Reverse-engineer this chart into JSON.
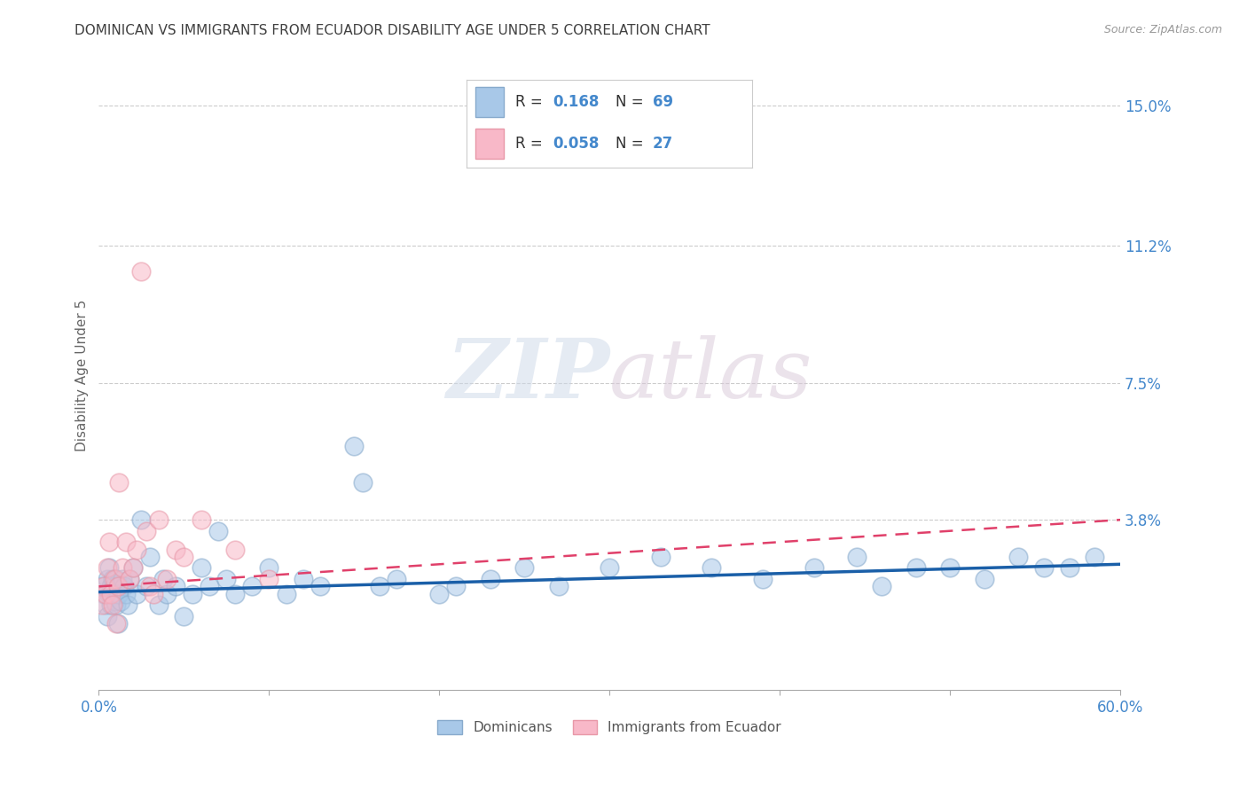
{
  "title": "DOMINICAN VS IMMIGRANTS FROM ECUADOR DISABILITY AGE UNDER 5 CORRELATION CHART",
  "source": "Source: ZipAtlas.com",
  "ylabel": "Disability Age Under 5",
  "xlim": [
    0.0,
    0.6
  ],
  "ylim": [
    -0.008,
    0.162
  ],
  "xticks": [
    0.0,
    0.1,
    0.2,
    0.3,
    0.4,
    0.5,
    0.6
  ],
  "xticklabels": [
    "0.0%",
    "",
    "",
    "",
    "",
    "",
    "60.0%"
  ],
  "ytick_positions": [
    0.038,
    0.075,
    0.112,
    0.15
  ],
  "ytick_labels": [
    "3.8%",
    "7.5%",
    "11.2%",
    "15.0%"
  ],
  "dominican_color": "#a8c8e8",
  "ecuador_color": "#f8b8c8",
  "dominican_edge_color": "#88aacc",
  "ecuador_edge_color": "#e898a8",
  "dominican_line_color": "#1a5fa8",
  "ecuador_line_color": "#e0406a",
  "legend_r_dominican": "0.168",
  "legend_n_dominican": "69",
  "legend_r_ecuador": "0.058",
  "legend_n_ecuador": "27",
  "legend_label_dominican": "Dominicans",
  "legend_label_ecuador": "Immigrants from Ecuador",
  "watermark_zip": "ZIP",
  "watermark_atlas": "atlas",
  "background_color": "#ffffff",
  "grid_color": "#cccccc",
  "title_color": "#404040",
  "axis_label_color": "#4488cc",
  "dominican_x": [
    0.002,
    0.003,
    0.004,
    0.005,
    0.005,
    0.006,
    0.006,
    0.007,
    0.007,
    0.008,
    0.008,
    0.009,
    0.009,
    0.01,
    0.01,
    0.011,
    0.011,
    0.012,
    0.012,
    0.013,
    0.014,
    0.015,
    0.016,
    0.017,
    0.018,
    0.02,
    0.022,
    0.025,
    0.028,
    0.03,
    0.035,
    0.038,
    0.04,
    0.045,
    0.05,
    0.055,
    0.06,
    0.065,
    0.07,
    0.075,
    0.08,
    0.09,
    0.1,
    0.11,
    0.12,
    0.13,
    0.15,
    0.155,
    0.165,
    0.175,
    0.2,
    0.21,
    0.23,
    0.25,
    0.27,
    0.3,
    0.33,
    0.36,
    0.39,
    0.42,
    0.445,
    0.46,
    0.48,
    0.5,
    0.52,
    0.54,
    0.555,
    0.57,
    0.585
  ],
  "dominican_y": [
    0.02,
    0.018,
    0.015,
    0.022,
    0.012,
    0.018,
    0.025,
    0.015,
    0.02,
    0.022,
    0.018,
    0.016,
    0.02,
    0.015,
    0.022,
    0.018,
    0.01,
    0.02,
    0.018,
    0.016,
    0.022,
    0.02,
    0.018,
    0.015,
    0.022,
    0.025,
    0.018,
    0.038,
    0.02,
    0.028,
    0.015,
    0.022,
    0.018,
    0.02,
    0.012,
    0.018,
    0.025,
    0.02,
    0.035,
    0.022,
    0.018,
    0.02,
    0.025,
    0.018,
    0.022,
    0.02,
    0.058,
    0.048,
    0.02,
    0.022,
    0.018,
    0.02,
    0.022,
    0.025,
    0.02,
    0.025,
    0.028,
    0.025,
    0.022,
    0.025,
    0.028,
    0.02,
    0.025,
    0.025,
    0.022,
    0.028,
    0.025,
    0.025,
    0.028
  ],
  "ecuador_x": [
    0.002,
    0.003,
    0.004,
    0.005,
    0.006,
    0.007,
    0.008,
    0.009,
    0.01,
    0.011,
    0.012,
    0.014,
    0.016,
    0.018,
    0.02,
    0.022,
    0.025,
    0.028,
    0.03,
    0.032,
    0.035,
    0.04,
    0.045,
    0.05,
    0.06,
    0.08,
    0.1
  ],
  "ecuador_y": [
    0.015,
    0.02,
    0.018,
    0.025,
    0.032,
    0.018,
    0.015,
    0.022,
    0.01,
    0.02,
    0.048,
    0.025,
    0.032,
    0.022,
    0.025,
    0.03,
    0.105,
    0.035,
    0.02,
    0.018,
    0.038,
    0.022,
    0.03,
    0.028,
    0.038,
    0.03,
    0.022
  ],
  "dom_line_x0": 0.0,
  "dom_line_y0": 0.0185,
  "dom_line_x1": 0.6,
  "dom_line_y1": 0.026,
  "ecu_line_x0": 0.0,
  "ecu_line_y0": 0.02,
  "ecu_line_x1": 0.6,
  "ecu_line_y1": 0.038
}
